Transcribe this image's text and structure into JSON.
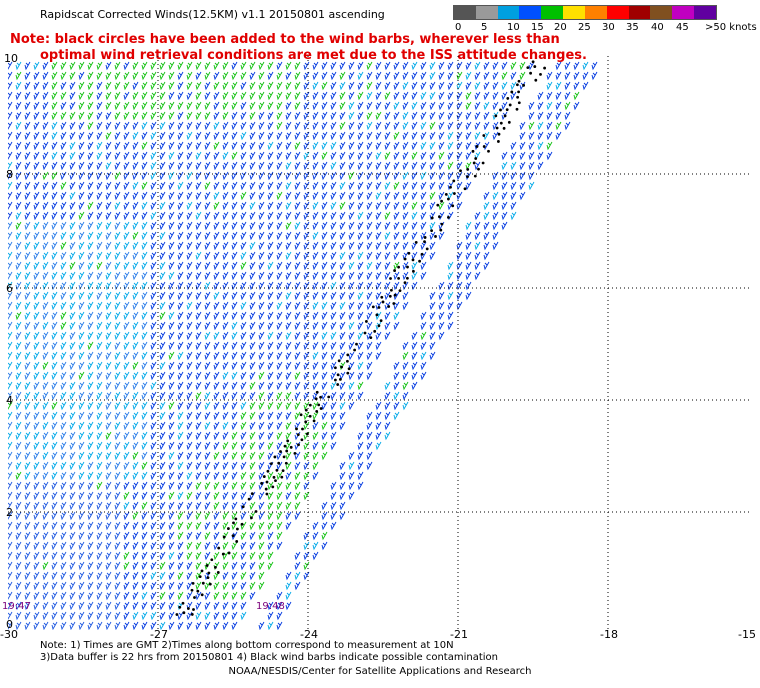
{
  "title": "Rapidscat Corrected Winds(12.5KM) v1.1 20150801 ascending",
  "note_red": {
    "line1": "Note: black circles have been added to the wind barbs, wherever less than",
    "line2": "optimal wind retrieval conditions are met due to the ISS attitude changes."
  },
  "legend": {
    "colors": [
      "#555555",
      "#9a9a9a",
      "#00a0e0",
      "#0050ff",
      "#00c000",
      "#ffe000",
      "#ff8000",
      "#ff0000",
      "#a00000",
      "#805020",
      "#c000c0",
      "#6000a0"
    ],
    "labels": [
      "0",
      "5",
      "10",
      "15",
      "20",
      "25",
      "30",
      "35",
      "40",
      "45",
      ">50 knots"
    ]
  },
  "axes": {
    "x_ticks": [
      "-30",
      "-27",
      "-24",
      "-21",
      "-18",
      "-15"
    ],
    "y_ticks": [
      "0",
      "2",
      "4",
      "6",
      "8",
      "10"
    ]
  },
  "time_labels": [
    "19:47",
    "19:48"
  ],
  "footer": {
    "line1": "Note: 1) Times are GMT 2)Times along bottom correspond to measurement at 10N",
    "line2": "3)Data buffer is 22 hrs from 20150801 4) Black wind barbs indicate possible contamination",
    "line3": "NOAA/NESDIS/Center for Satellite Applications and Research"
  }
}
